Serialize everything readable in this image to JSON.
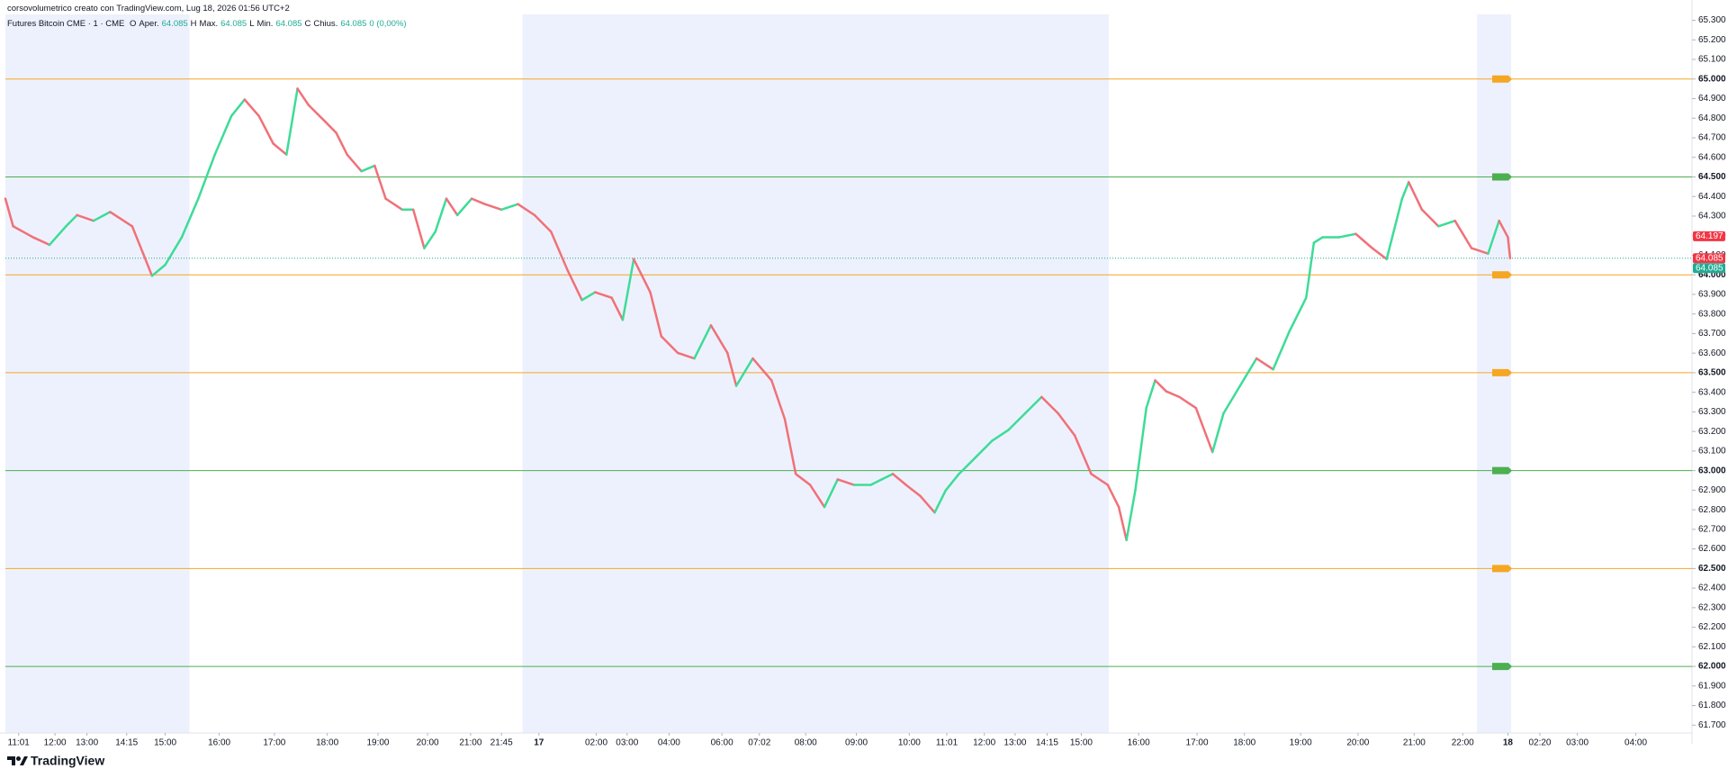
{
  "chart_data": {
    "type": "line",
    "header": "corsovolumetrico creato con TradingView.com, Lug 18, 2026 01:56 UTC+2",
    "title": "Futures Bitcoin CME · 1 · CME",
    "ohlc": [
      {
        "key": "O",
        "name": "Aper.",
        "value": "64.085"
      },
      {
        "key": "H",
        "name": "Max.",
        "value": "64.085"
      },
      {
        "key": "L",
        "name": "Min.",
        "value": "64.085"
      },
      {
        "key": "C",
        "name": "Chius.",
        "value": "64.085"
      }
    ],
    "change": "0 (0,00%)",
    "watermark": "TradingView",
    "up_color": "#3ddc97",
    "down_color": "#f07178",
    "xlim": [
      0,
      1530
    ],
    "ylim": [
      61660,
      65330
    ],
    "x": [
      0,
      7,
      25,
      40,
      55,
      65,
      80,
      95,
      115,
      125,
      133,
      145,
      160,
      175,
      190,
      205,
      217,
      230,
      243,
      255,
      265,
      275,
      290,
      300,
      310,
      323,
      335,
      345,
      360,
      370,
      380,
      390,
      400,
      410,
      423,
      435,
      450,
      465,
      480,
      495,
      510,
      523,
      535,
      550,
      560,
      570,
      585,
      595,
      610,
      625,
      640,
      655,
      663,
      678,
      695,
      707,
      717,
      730,
      743,
      755,
      770,
      785,
      795,
      805,
      817,
      830,
      843,
      853,
      865,
      880,
      895,
      910,
      925,
      940,
      955,
      970,
      985,
      1000,
      1010,
      1017,
      1025,
      1035,
      1043,
      1053,
      1065,
      1080,
      1095,
      1105,
      1120,
      1135,
      1150,
      1165,
      1180,
      1187,
      1195,
      1210,
      1225,
      1240,
      1253,
      1267,
      1273,
      1285,
      1300,
      1315,
      1330,
      1345,
      1355,
      1363,
      1365
    ],
    "values": [
      64389,
      64248,
      64192,
      64153,
      64248,
      64305,
      64276,
      64321,
      64248,
      64108,
      63995,
      64051,
      64192,
      64389,
      64614,
      64811,
      64895,
      64811,
      64670,
      64614,
      64951,
      64867,
      64783,
      64726,
      64614,
      64529,
      64557,
      64389,
      64333,
      64333,
      64136,
      64220,
      64389,
      64305,
      64389,
      64361,
      64333,
      64361,
      64305,
      64220,
      64023,
      63871,
      63911,
      63883,
      63770,
      64080,
      63911,
      63686,
      63601,
      63573,
      63742,
      63601,
      63433,
      63573,
      63461,
      63264,
      62983,
      62927,
      62814,
      62955,
      62927,
      62927,
      62955,
      62983,
      62927,
      62870,
      62786,
      62899,
      62983,
      63067,
      63152,
      63208,
      63292,
      63376,
      63292,
      63180,
      62983,
      62927,
      62814,
      62645,
      62899,
      63320,
      63461,
      63405,
      63376,
      63320,
      63095,
      63292,
      63433,
      63573,
      63517,
      63714,
      63883,
      64164,
      64192,
      64192,
      64209,
      64136,
      64080,
      64389,
      64473,
      64333,
      64248,
      64276,
      64136,
      64108,
      64276,
      64192,
      64085
    ],
    "sessions": [
      [
        0,
        167
      ],
      [
        469,
        1001
      ],
      [
        1335,
        1366
      ]
    ],
    "session_color": "#edf1fd",
    "levels": [
      {
        "value": 65000,
        "color": "#f5a623"
      },
      {
        "value": 64500,
        "color": "#4caf50"
      },
      {
        "value": 64000,
        "color": "#f5a623"
      },
      {
        "value": 63500,
        "color": "#f5a623"
      },
      {
        "value": 63000,
        "color": "#4caf50"
      },
      {
        "value": 62500,
        "color": "#f5a623"
      },
      {
        "value": 62000,
        "color": "#4caf50"
      }
    ],
    "last_line": {
      "value": 64085,
      "color": "#22ab94"
    },
    "price_labels": [
      {
        "value": 64197,
        "label": "64.197",
        "color": "#f23645"
      },
      {
        "value": 64085,
        "label": "64.085",
        "color": "#f23645"
      },
      {
        "value": 64085,
        "label": "64.085",
        "color": "#22ab94"
      }
    ],
    "xticks": [
      {
        "value": 12,
        "label": "11:01"
      },
      {
        "value": 45,
        "label": "12:00"
      },
      {
        "value": 74,
        "label": "13:00"
      },
      {
        "value": 110,
        "label": "14:15"
      },
      {
        "value": 145,
        "label": "15:00"
      },
      {
        "value": 194,
        "label": "16:00"
      },
      {
        "value": 244,
        "label": "17:00"
      },
      {
        "value": 292,
        "label": "18:00"
      },
      {
        "value": 338,
        "label": "19:00"
      },
      {
        "value": 383,
        "label": "20:00"
      },
      {
        "value": 422,
        "label": "21:00"
      },
      {
        "value": 450,
        "label": "21:45"
      },
      {
        "value": 484,
        "label": "17"
      },
      {
        "value": 536,
        "label": "02:00"
      },
      {
        "value": 564,
        "label": "03:00"
      },
      {
        "value": 602,
        "label": "04:00"
      },
      {
        "value": 650,
        "label": "06:00"
      },
      {
        "value": 684,
        "label": "07:02"
      },
      {
        "value": 726,
        "label": "08:00"
      },
      {
        "value": 772,
        "label": "09:00"
      },
      {
        "value": 820,
        "label": "10:00"
      },
      {
        "value": 854,
        "label": "11:01"
      },
      {
        "value": 888,
        "label": "12:00"
      },
      {
        "value": 916,
        "label": "13:00"
      },
      {
        "value": 945,
        "label": "14:15"
      },
      {
        "value": 976,
        "label": "15:00"
      },
      {
        "value": 1028,
        "label": "16:00"
      },
      {
        "value": 1081,
        "label": "17:00"
      },
      {
        "value": 1124,
        "label": "18:00"
      },
      {
        "value": 1175,
        "label": "19:00"
      },
      {
        "value": 1227,
        "label": "20:00"
      },
      {
        "value": 1278,
        "label": "21:00"
      },
      {
        "value": 1322,
        "label": "22:00"
      },
      {
        "value": 1363,
        "label": "18"
      },
      {
        "value": 1392,
        "label": "02:20"
      },
      {
        "value": 1426,
        "label": "03:00"
      },
      {
        "value": 1479,
        "label": "04:00"
      }
    ],
    "yticks": [
      {
        "value": 61700,
        "label": "61.700"
      },
      {
        "value": 61800,
        "label": "61.800"
      },
      {
        "value": 61900,
        "label": "61.900"
      },
      {
        "value": 62000,
        "label": "62.000"
      },
      {
        "value": 62100,
        "label": "62.100"
      },
      {
        "value": 62200,
        "label": "62.200"
      },
      {
        "value": 62300,
        "label": "62.300"
      },
      {
        "value": 62400,
        "label": "62.400"
      },
      {
        "value": 62500,
        "label": "62.500"
      },
      {
        "value": 62600,
        "label": "62.600"
      },
      {
        "value": 62700,
        "label": "62.700"
      },
      {
        "value": 62800,
        "label": "62.800"
      },
      {
        "value": 62900,
        "label": "62.900"
      },
      {
        "value": 63000,
        "label": "63.000"
      },
      {
        "value": 63100,
        "label": "63.100"
      },
      {
        "value": 63200,
        "label": "63.200"
      },
      {
        "value": 63300,
        "label": "63.300"
      },
      {
        "value": 63400,
        "label": "63.400"
      },
      {
        "value": 63500,
        "label": "63.500"
      },
      {
        "value": 63600,
        "label": "63.600"
      },
      {
        "value": 63700,
        "label": "63.700"
      },
      {
        "value": 63800,
        "label": "63.800"
      },
      {
        "value": 63900,
        "label": "63.900"
      },
      {
        "value": 64000,
        "label": "64.000"
      },
      {
        "value": 64100,
        "label": "64.100"
      },
      {
        "value": 64200,
        "label": "64.200"
      },
      {
        "value": 64300,
        "label": "64.300"
      },
      {
        "value": 64400,
        "label": "64.400"
      },
      {
        "value": 64500,
        "label": "64.500"
      },
      {
        "value": 64600,
        "label": "64.600"
      },
      {
        "value": 64700,
        "label": "64.700"
      },
      {
        "value": 64800,
        "label": "64.800"
      },
      {
        "value": 64900,
        "label": "64.900"
      },
      {
        "value": 65000,
        "label": "65.000"
      },
      {
        "value": 65100,
        "label": "65.100"
      },
      {
        "value": 65200,
        "label": "65.200"
      },
      {
        "value": 65300,
        "label": "65.300"
      }
    ]
  }
}
